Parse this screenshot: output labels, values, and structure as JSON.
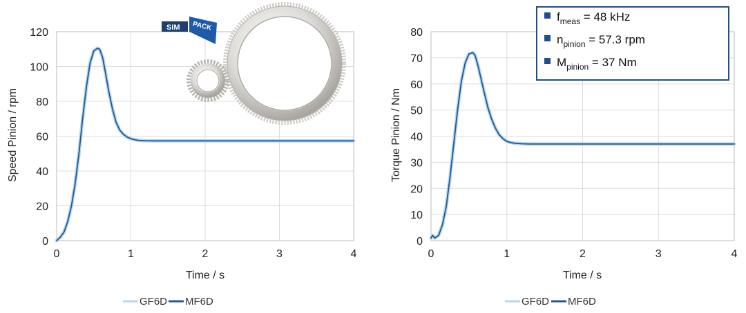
{
  "logo": {
    "text_left": "SIM",
    "text_right": "PACK"
  },
  "info_box": [
    {
      "symbol": "f",
      "subscript": "meas",
      "text": " = 48 kHz"
    },
    {
      "symbol": "n",
      "subscript": "pinion",
      "text": " =  57.3 rpm"
    },
    {
      "symbol": "M",
      "subscript": "pinion",
      "text": " = 37 Nm"
    }
  ],
  "colors": {
    "gf6d": "#b9d6ec",
    "mf6d": "#1f5a9a",
    "grid": "#dcdcdc",
    "box": "#1f4e8c"
  },
  "chart_data": [
    {
      "type": "line",
      "title": "",
      "xlabel": "Time / s",
      "ylabel": "Speed Pinion / rpm",
      "xlim": [
        0,
        4
      ],
      "ylim": [
        0,
        120
      ],
      "xticks": [
        0,
        1,
        2,
        3,
        4
      ],
      "yticks": [
        0,
        20,
        40,
        60,
        80,
        100,
        120
      ],
      "grid": true,
      "legend": "bottom-center",
      "series": [
        {
          "name": "GF6D",
          "x": [
            0,
            0.05,
            0.1,
            0.15,
            0.2,
            0.25,
            0.3,
            0.35,
            0.4,
            0.45,
            0.5,
            0.55,
            0.58,
            0.62,
            0.66,
            0.7,
            0.75,
            0.8,
            0.85,
            0.9,
            0.95,
            1.0,
            1.05,
            1.1,
            1.2,
            1.3,
            1.5,
            2.0,
            3.0,
            4.0
          ],
          "y": [
            0,
            2,
            5,
            11,
            20,
            33,
            50,
            70,
            88,
            102,
            109,
            110.5,
            110,
            105,
            96,
            86,
            76,
            68,
            63.5,
            61,
            59.5,
            58.5,
            58,
            57.6,
            57.4,
            57.3,
            57.3,
            57.3,
            57.3,
            57.3
          ]
        },
        {
          "name": "MF6D",
          "x": [
            0,
            0.05,
            0.1,
            0.15,
            0.2,
            0.25,
            0.3,
            0.35,
            0.4,
            0.45,
            0.5,
            0.55,
            0.58,
            0.62,
            0.66,
            0.7,
            0.75,
            0.8,
            0.85,
            0.9,
            0.95,
            1.0,
            1.05,
            1.1,
            1.2,
            1.3,
            1.5,
            2.0,
            3.0,
            4.0
          ],
          "y": [
            0,
            2,
            5,
            11,
            20,
            33,
            50,
            70,
            88,
            102,
            109,
            110.5,
            110,
            105,
            96,
            86,
            76,
            68,
            63.5,
            61,
            59.5,
            58.5,
            58,
            57.6,
            57.4,
            57.3,
            57.3,
            57.3,
            57.3,
            57.3
          ]
        }
      ]
    },
    {
      "type": "line",
      "title": "",
      "xlabel": "Time / s",
      "ylabel": "Torque Pinion / Nm",
      "xlim": [
        0,
        4
      ],
      "ylim": [
        0,
        80
      ],
      "xticks": [
        0,
        1,
        2,
        3,
        4
      ],
      "yticks": [
        0,
        10,
        20,
        30,
        40,
        50,
        60,
        70,
        80
      ],
      "grid": true,
      "legend": "bottom-center",
      "series": [
        {
          "name": "GF6D",
          "x": [
            0,
            0.02,
            0.05,
            0.1,
            0.15,
            0.2,
            0.25,
            0.3,
            0.35,
            0.4,
            0.45,
            0.5,
            0.55,
            0.58,
            0.62,
            0.66,
            0.7,
            0.75,
            0.8,
            0.85,
            0.9,
            0.95,
            1.0,
            1.05,
            1.1,
            1.2,
            1.3,
            1.5,
            2.0,
            3.0,
            4.0
          ],
          "y": [
            1,
            2,
            1,
            2,
            6,
            13,
            24,
            37,
            50,
            61,
            68,
            71.5,
            72,
            71,
            67,
            62,
            57,
            51,
            46.5,
            43,
            40.5,
            39,
            38,
            37.6,
            37.3,
            37.1,
            37,
            37,
            37,
            37,
            37
          ]
        },
        {
          "name": "MF6D",
          "x": [
            0,
            0.02,
            0.05,
            0.1,
            0.15,
            0.2,
            0.25,
            0.3,
            0.35,
            0.4,
            0.45,
            0.5,
            0.55,
            0.58,
            0.62,
            0.66,
            0.7,
            0.75,
            0.8,
            0.85,
            0.9,
            0.95,
            1.0,
            1.05,
            1.1,
            1.2,
            1.3,
            1.5,
            2.0,
            3.0,
            4.0
          ],
          "y": [
            1,
            2,
            1,
            2,
            6,
            13,
            24,
            37,
            50,
            61,
            68,
            71.5,
            72,
            71,
            67,
            62,
            57,
            51,
            46.5,
            43,
            40.5,
            39,
            38,
            37.6,
            37.3,
            37.1,
            37,
            37,
            37,
            37,
            37
          ]
        }
      ]
    }
  ]
}
